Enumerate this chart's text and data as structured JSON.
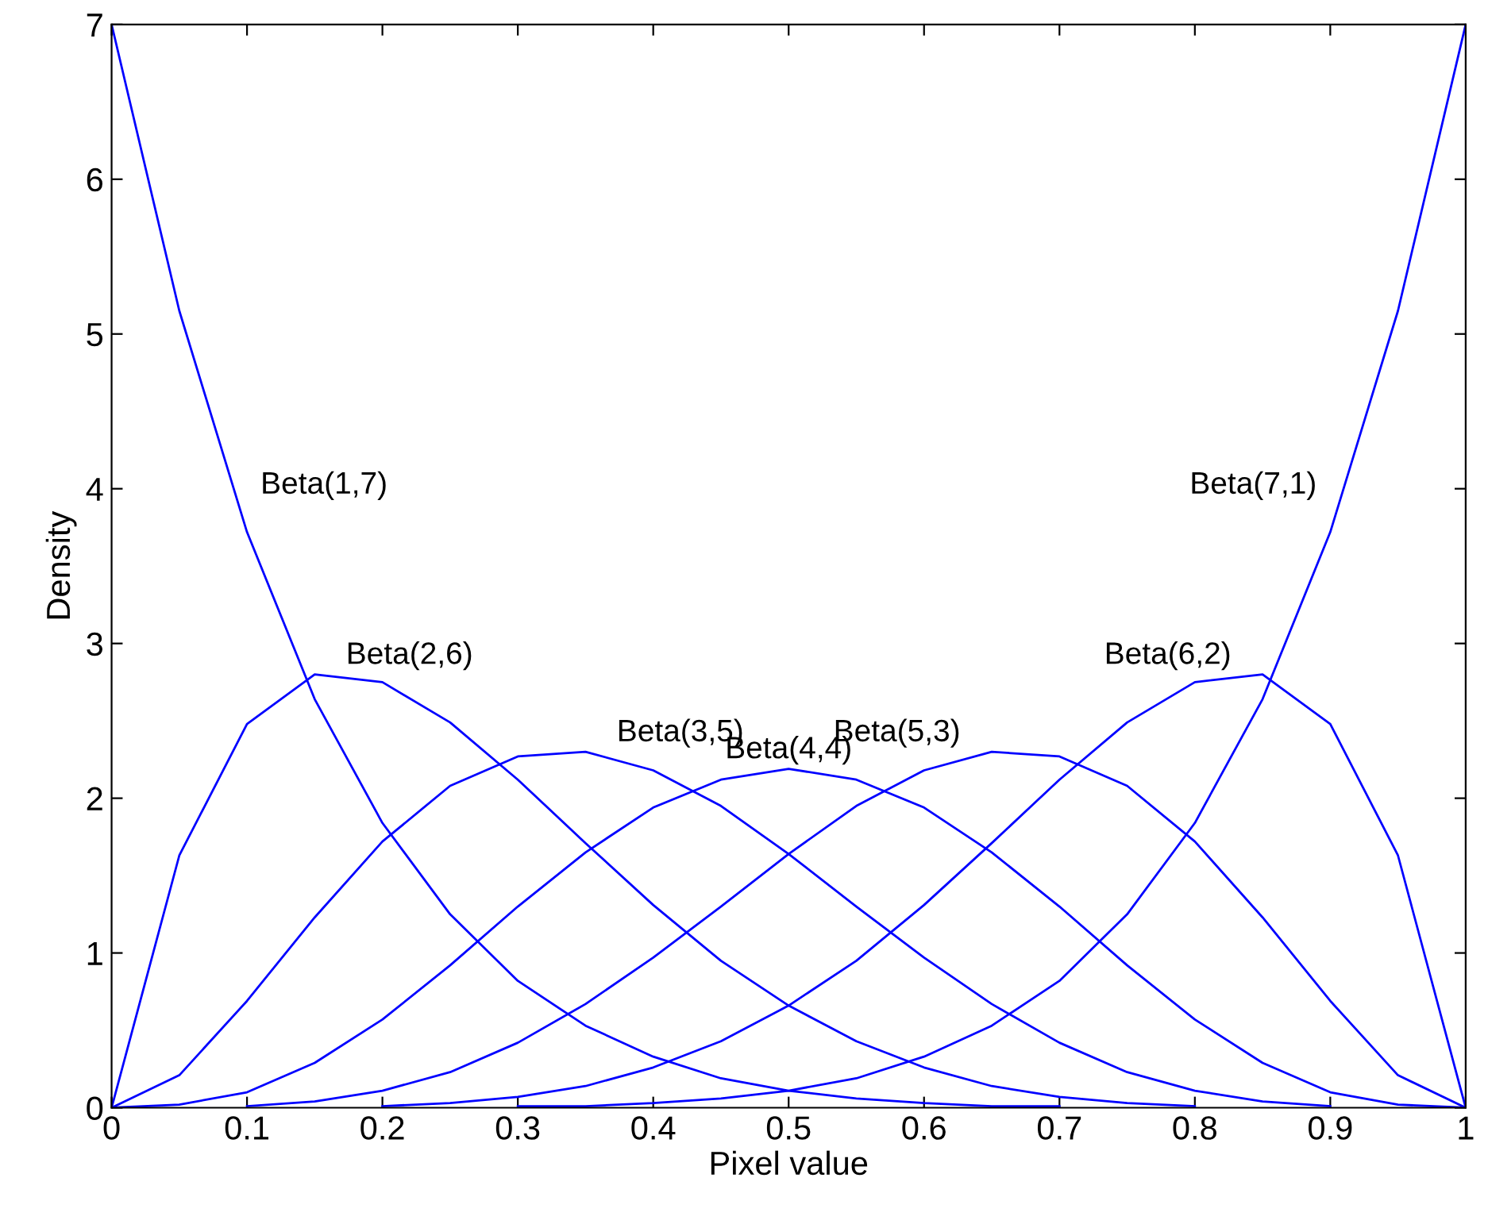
{
  "chart_data": {
    "type": "line",
    "xlabel": "Pixel value",
    "ylabel": "Density",
    "x": [
      0,
      0.05,
      0.1,
      0.15,
      0.2,
      0.25,
      0.3,
      0.35,
      0.4,
      0.45,
      0.5,
      0.55,
      0.6,
      0.65,
      0.7,
      0.75,
      0.8,
      0.85,
      0.9,
      0.95,
      1
    ],
    "series": [
      {
        "name": "Beta(1,7)",
        "color": "#0000ff",
        "values": [
          7,
          5.15,
          3.72,
          2.64,
          1.84,
          1.25,
          0.82,
          0.53,
          0.33,
          0.19,
          0.11,
          0.06,
          0.03,
          0.01,
          0.01,
          null,
          null,
          null,
          null,
          null,
          null
        ]
      },
      {
        "name": "Beta(2,6)",
        "color": "#0000ff",
        "values": [
          0,
          1.63,
          2.48,
          2.8,
          2.75,
          2.49,
          2.12,
          1.71,
          1.31,
          0.95,
          0.66,
          0.43,
          0.26,
          0.14,
          0.07,
          0.03,
          0.01,
          null,
          null,
          null,
          null
        ]
      },
      {
        "name": "Beta(3,5)",
        "color": "#0000ff",
        "values": [
          0,
          0.21,
          0.69,
          1.23,
          1.72,
          2.08,
          2.27,
          2.3,
          2.18,
          1.95,
          1.64,
          1.3,
          0.97,
          0.67,
          0.42,
          0.23,
          0.11,
          0.04,
          0.01,
          null,
          null
        ]
      },
      {
        "name": "Beta(4,4)",
        "color": "#0000ff",
        "values": [
          0,
          0.02,
          0.1,
          0.29,
          0.57,
          0.92,
          1.3,
          1.65,
          1.94,
          2.12,
          2.19,
          2.12,
          1.94,
          1.65,
          1.3,
          0.92,
          0.57,
          0.29,
          0.1,
          0.02,
          0
        ]
      },
      {
        "name": "Beta(5,3)",
        "color": "#0000ff",
        "values": [
          null,
          null,
          0.01,
          0.04,
          0.11,
          0.23,
          0.42,
          0.67,
          0.97,
          1.3,
          1.64,
          1.95,
          2.18,
          2.3,
          2.27,
          2.08,
          1.72,
          1.23,
          0.69,
          0.21,
          0
        ]
      },
      {
        "name": "Beta(6,2)",
        "color": "#0000ff",
        "values": [
          null,
          null,
          null,
          null,
          0.01,
          0.03,
          0.07,
          0.14,
          0.26,
          0.43,
          0.66,
          0.95,
          1.31,
          1.71,
          2.12,
          2.49,
          2.75,
          2.8,
          2.48,
          1.63,
          0
        ]
      },
      {
        "name": "Beta(7,1)",
        "color": "#0000ff",
        "values": [
          null,
          null,
          null,
          null,
          null,
          null,
          0.01,
          0.01,
          0.03,
          0.06,
          0.11,
          0.19,
          0.33,
          0.53,
          0.82,
          1.25,
          1.84,
          2.64,
          3.72,
          5.15,
          7
        ]
      }
    ],
    "xlim": [
      0,
      1
    ],
    "ylim": [
      0,
      7
    ],
    "xticks": [
      0,
      0.1,
      0.2,
      0.3,
      0.4,
      0.5,
      0.6,
      0.7,
      0.8,
      0.9,
      1
    ],
    "yticks": [
      0,
      1,
      2,
      3,
      4,
      5,
      6,
      7
    ],
    "grid": false,
    "legend": false,
    "marker": "none",
    "line_style": "solid"
  }
}
